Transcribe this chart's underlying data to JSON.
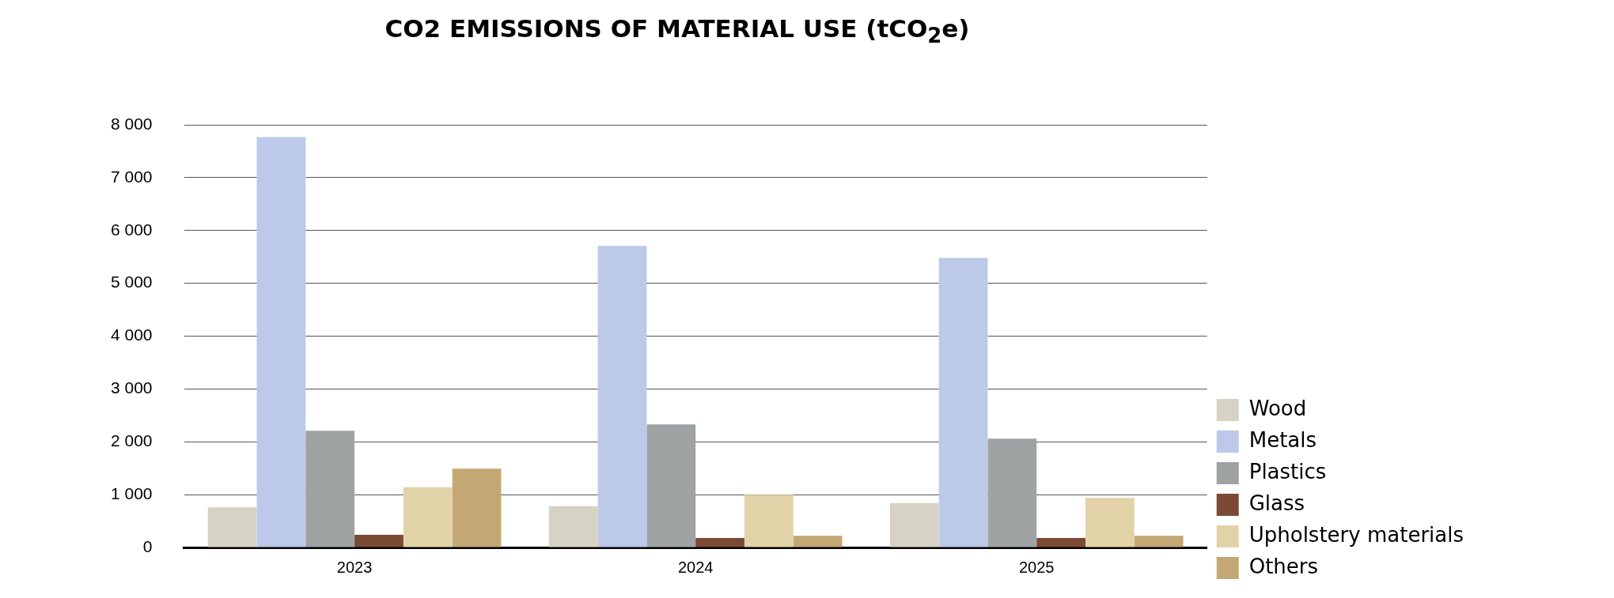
{
  "chart_data": {
    "type": "bar",
    "title": "CO2 EMISSIONS OF MATERIAL USE (tCO$_{2}$e)",
    "categories": [
      "2023",
      "2024",
      "2025"
    ],
    "series": [
      {
        "name": "Wood",
        "color": "#d6d2c4",
        "values": [
          760,
          780,
          840
        ]
      },
      {
        "name": "Metals",
        "color": "#bdc9e8",
        "values": [
          7770,
          5710,
          5480
        ]
      },
      {
        "name": "Plastics",
        "color": "#9fa3a3",
        "values": [
          2210,
          2330,
          2060
        ]
      },
      {
        "name": "Glass",
        "color": "#7a4a35",
        "values": [
          240,
          180,
          180
        ]
      },
      {
        "name": "Upholstery materials",
        "color": "#e2d2a8",
        "values": [
          1140,
          1000,
          940
        ]
      },
      {
        "name": "Others",
        "color": "#c4a874",
        "values": [
          1490,
          220,
          220
        ]
      }
    ],
    "ylim": [
      0,
      8000
    ],
    "yticks": [
      {
        "value": 0,
        "label": "0"
      },
      {
        "value": 1000,
        "label": "1 000"
      },
      {
        "value": 2000,
        "label": "2 000"
      },
      {
        "value": 3000,
        "label": "3 000"
      },
      {
        "value": 4000,
        "label": "4 000"
      },
      {
        "value": 5000,
        "label": "5 000"
      },
      {
        "value": 6000,
        "label": "6 000"
      },
      {
        "value": 7000,
        "label": "7 000"
      },
      {
        "value": 8000,
        "label": "8 000"
      }
    ],
    "grid": "y",
    "legend": "bottom right"
  }
}
